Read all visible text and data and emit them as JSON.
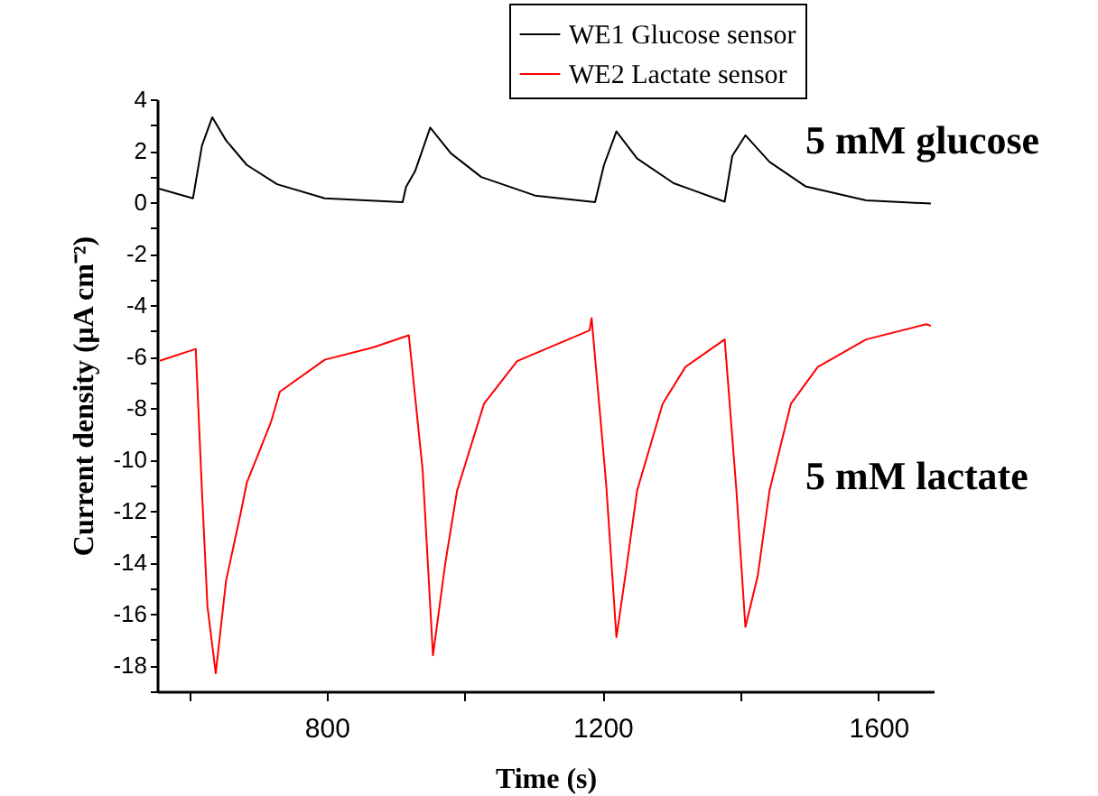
{
  "chart_data": {
    "type": "line",
    "xlabel": "Time (s)",
    "ylabel": "Current density (μA cm⁻²)",
    "xlim": [
      554,
      1680
    ],
    "ylim": [
      -19,
      4
    ],
    "xticks": [
      {
        "value": 600,
        "label": null
      },
      800,
      {
        "value": 1000,
        "label": null
      },
      1200,
      {
        "value": 1400,
        "label": null
      },
      1600
    ],
    "yticks": [
      {
        "value": -19,
        "label": null
      },
      -18,
      {
        "value": -17,
        "label": null
      },
      -16,
      {
        "value": -15,
        "label": null
      },
      -14,
      {
        "value": -13,
        "label": null
      },
      -12,
      {
        "value": -11,
        "label": null
      },
      -10,
      {
        "value": -9,
        "label": null
      },
      -8,
      {
        "value": -7,
        "label": null
      },
      -6,
      {
        "value": -5,
        "label": null
      },
      -4,
      {
        "value": -3,
        "label": null
      },
      -2,
      {
        "value": -1,
        "label": null
      },
      0,
      {
        "value": 1,
        "label": null
      },
      2,
      {
        "value": 3,
        "label": null
      },
      4
    ],
    "legend": "top right",
    "annotations": [
      "5 mM glucose",
      "5 mM lactate"
    ],
    "series": [
      {
        "name": "WE1 Glucose sensor",
        "color": "#000000",
        "x": [
          554,
          606,
          619,
          634,
          654,
          684,
          728,
          797,
          910,
          915,
          928,
          950,
          980,
          1024,
          1102,
          1189,
          1202,
          1220,
          1250,
          1303,
          1377,
          1388,
          1407,
          1442,
          1494,
          1582,
          1676
        ],
        "values": [
          0.55,
          0.15,
          2.2,
          3.3,
          2.4,
          1.45,
          0.7,
          0.15,
          0,
          0.6,
          1.2,
          2.9,
          1.9,
          0.98,
          0.26,
          0,
          1.45,
          2.75,
          1.7,
          0.74,
          0.02,
          1.8,
          2.6,
          1.57,
          0.62,
          0.07,
          -0.05
        ]
      },
      {
        "name": "WE2 Lactate sensor",
        "color": "#ff0000",
        "x": [
          558,
          610,
          619,
          627,
          639,
          654,
          675,
          684,
          719,
          732,
          797,
          867,
          919,
          939,
          954,
          972,
          989,
          1028,
          1076,
          1181,
          1184,
          1205,
          1220,
          1233,
          1250,
          1287,
          1320,
          1377,
          1394,
          1407,
          1425,
          1442,
          1473,
          1512,
          1582,
          1669,
          1676
        ],
        "values": [
          -6.16,
          -5.7,
          -11.2,
          -15.7,
          -18.3,
          -14.7,
          -12.1,
          -10.9,
          -8.55,
          -7.36,
          -6.12,
          -5.64,
          -5.17,
          -10.4,
          -17.6,
          -14.0,
          -11.2,
          -7.83,
          -6.17,
          -4.98,
          -4.5,
          -10.9,
          -16.9,
          -14.5,
          -11.2,
          -7.83,
          -6.4,
          -5.33,
          -11.2,
          -16.5,
          -14.5,
          -11.2,
          -7.83,
          -6.4,
          -5.33,
          -4.74,
          -4.8
        ]
      }
    ]
  }
}
